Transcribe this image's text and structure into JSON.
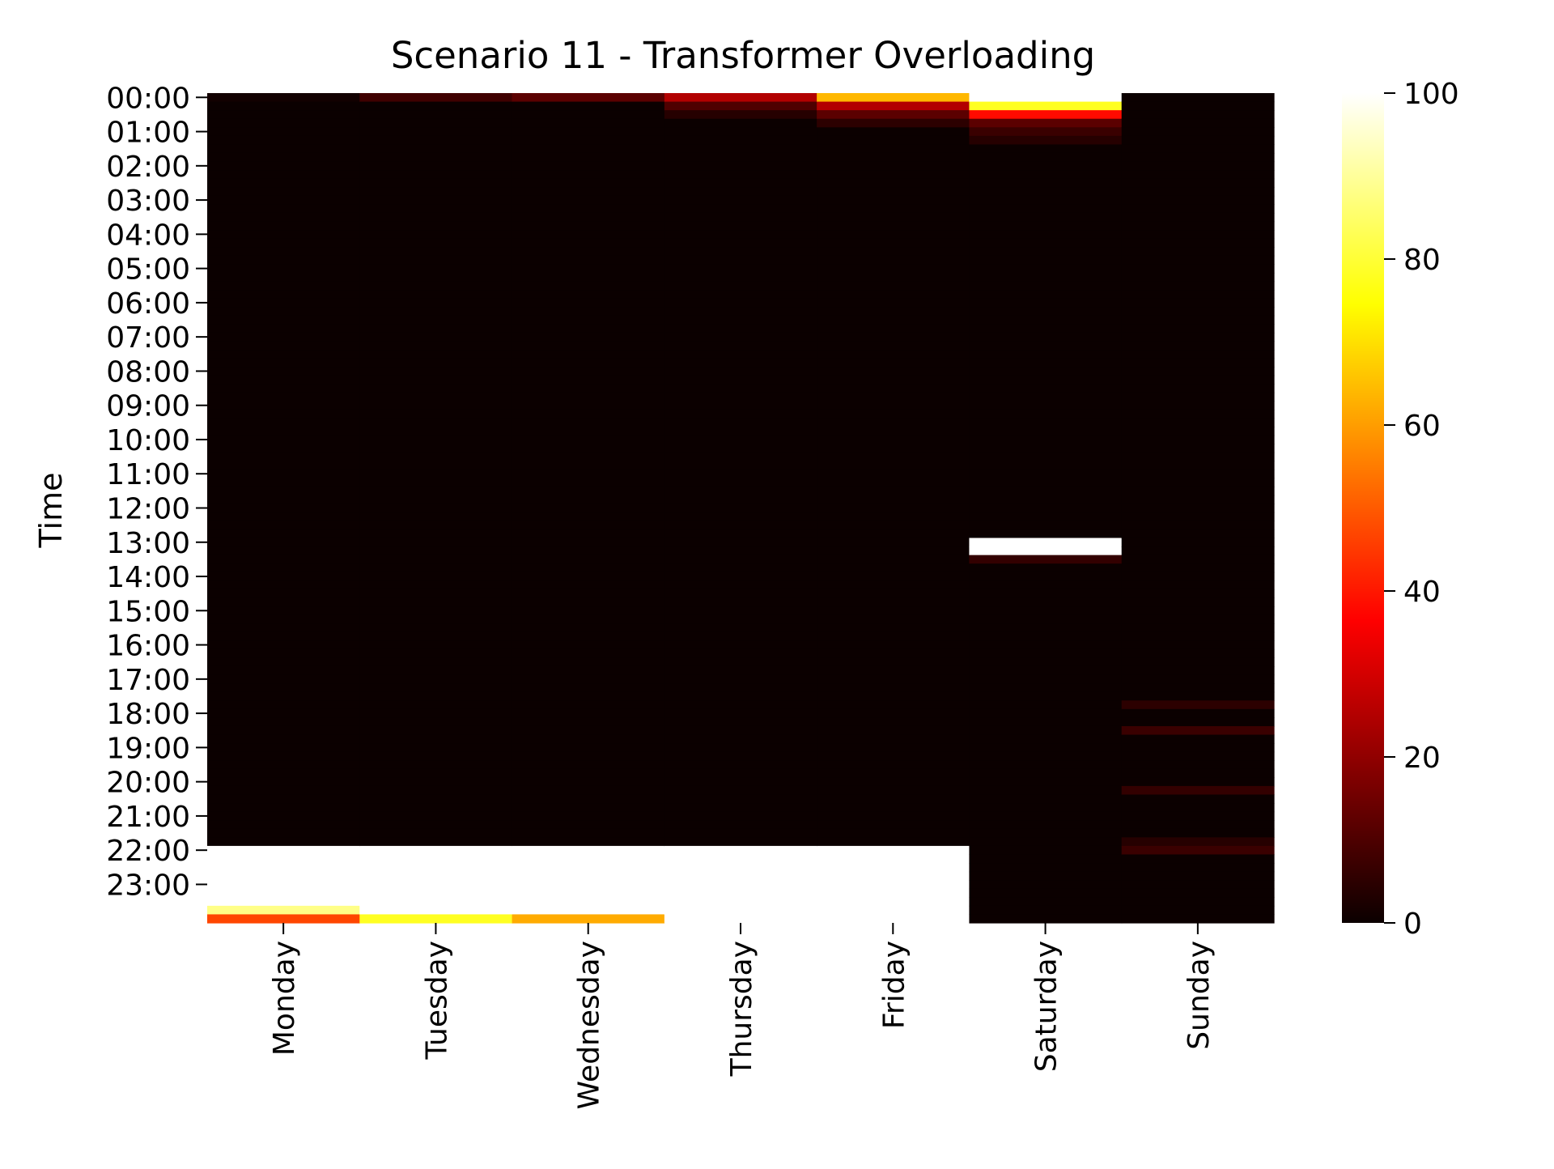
{
  "chart_data": {
    "type": "heatmap",
    "title": "Scenario 11 - Transformer Overloading",
    "xlabel": "",
    "ylabel": "Time",
    "x_categories": [
      "Monday",
      "Tuesday",
      "Wednesday",
      "Thursday",
      "Friday",
      "Saturday",
      "Sunday"
    ],
    "y_tick_labels": [
      "00:00",
      "01:00",
      "02:00",
      "03:00",
      "04:00",
      "05:00",
      "06:00",
      "07:00",
      "08:00",
      "09:00",
      "10:00",
      "11:00",
      "12:00",
      "13:00",
      "14:00",
      "15:00",
      "16:00",
      "17:00",
      "18:00",
      "19:00",
      "20:00",
      "21:00",
      "22:00",
      "23:00"
    ],
    "slots_per_hour": 4,
    "colormap": "hot",
    "colorbar": {
      "ticks": [
        0,
        20,
        40,
        60,
        80,
        100
      ],
      "vmin": 0,
      "vmax": 100
    },
    "missing_color": "#ffffff",
    "default_value": 0,
    "series": [
      {
        "name": "Monday",
        "cells": [
          {
            "time": "00:00",
            "value": 1
          },
          {
            "time": "22:00",
            "value": null
          },
          {
            "time": "22:15",
            "value": null
          },
          {
            "time": "22:30",
            "value": null
          },
          {
            "time": "22:45",
            "value": null
          },
          {
            "time": "23:00",
            "value": null
          },
          {
            "time": "23:15",
            "value": null
          },
          {
            "time": "23:30",
            "value": null
          },
          {
            "time": "23:45",
            "value": 88
          },
          {
            "time": "24:00",
            "value": 47
          }
        ]
      },
      {
        "name": "Tuesday",
        "cells": [
          {
            "time": "00:00",
            "value": 8
          },
          {
            "time": "22:00",
            "value": null
          },
          {
            "time": "22:15",
            "value": null
          },
          {
            "time": "22:30",
            "value": null
          },
          {
            "time": "22:45",
            "value": null
          },
          {
            "time": "23:00",
            "value": null
          },
          {
            "time": "23:15",
            "value": null
          },
          {
            "time": "23:30",
            "value": null
          },
          {
            "time": "23:45",
            "value": null
          },
          {
            "time": "24:00",
            "value": 78
          }
        ]
      },
      {
        "name": "Wednesday",
        "cells": [
          {
            "time": "00:00",
            "value": 12
          },
          {
            "time": "22:00",
            "value": null
          },
          {
            "time": "22:15",
            "value": null
          },
          {
            "time": "22:30",
            "value": null
          },
          {
            "time": "22:45",
            "value": null
          },
          {
            "time": "23:00",
            "value": null
          },
          {
            "time": "23:15",
            "value": null
          },
          {
            "time": "23:30",
            "value": null
          },
          {
            "time": "23:45",
            "value": null
          },
          {
            "time": "24:00",
            "value": 62
          }
        ]
      },
      {
        "name": "Thursday",
        "cells": [
          {
            "time": "00:00",
            "value": 25
          },
          {
            "time": "00:15",
            "value": 10
          },
          {
            "time": "00:30",
            "value": 4
          },
          {
            "time": "22:00",
            "value": null
          },
          {
            "time": "22:15",
            "value": null
          },
          {
            "time": "22:30",
            "value": null
          },
          {
            "time": "22:45",
            "value": null
          },
          {
            "time": "23:00",
            "value": null
          },
          {
            "time": "23:15",
            "value": null
          },
          {
            "time": "23:30",
            "value": null
          },
          {
            "time": "23:45",
            "value": null
          },
          {
            "time": "24:00",
            "value": null
          }
        ]
      },
      {
        "name": "Friday",
        "cells": [
          {
            "time": "00:00",
            "value": 64
          },
          {
            "time": "00:15",
            "value": 25
          },
          {
            "time": "00:30",
            "value": 12
          },
          {
            "time": "00:45",
            "value": 5
          },
          {
            "time": "22:00",
            "value": null
          },
          {
            "time": "22:15",
            "value": null
          },
          {
            "time": "22:30",
            "value": null
          },
          {
            "time": "22:45",
            "value": null
          },
          {
            "time": "23:00",
            "value": null
          },
          {
            "time": "23:15",
            "value": null
          },
          {
            "time": "23:30",
            "value": null
          },
          {
            "time": "23:45",
            "value": null
          },
          {
            "time": "24:00",
            "value": null
          }
        ]
      },
      {
        "name": "Saturday",
        "cells": [
          {
            "time": "00:00",
            "value": null
          },
          {
            "time": "00:15",
            "value": 78
          },
          {
            "time": "00:30",
            "value": 38
          },
          {
            "time": "00:45",
            "value": 12
          },
          {
            "time": "01:00",
            "value": 7
          },
          {
            "time": "01:15",
            "value": 4
          },
          {
            "time": "13:00",
            "value": null
          },
          {
            "time": "13:15",
            "value": 100
          },
          {
            "time": "13:30",
            "value": 6
          }
        ]
      },
      {
        "name": "Sunday",
        "cells": [
          {
            "time": "17:45",
            "value": 5
          },
          {
            "time": "18:30",
            "value": 7
          },
          {
            "time": "20:15",
            "value": 6
          },
          {
            "time": "21:45",
            "value": 4
          },
          {
            "time": "22:00",
            "value": 7
          }
        ]
      }
    ]
  }
}
